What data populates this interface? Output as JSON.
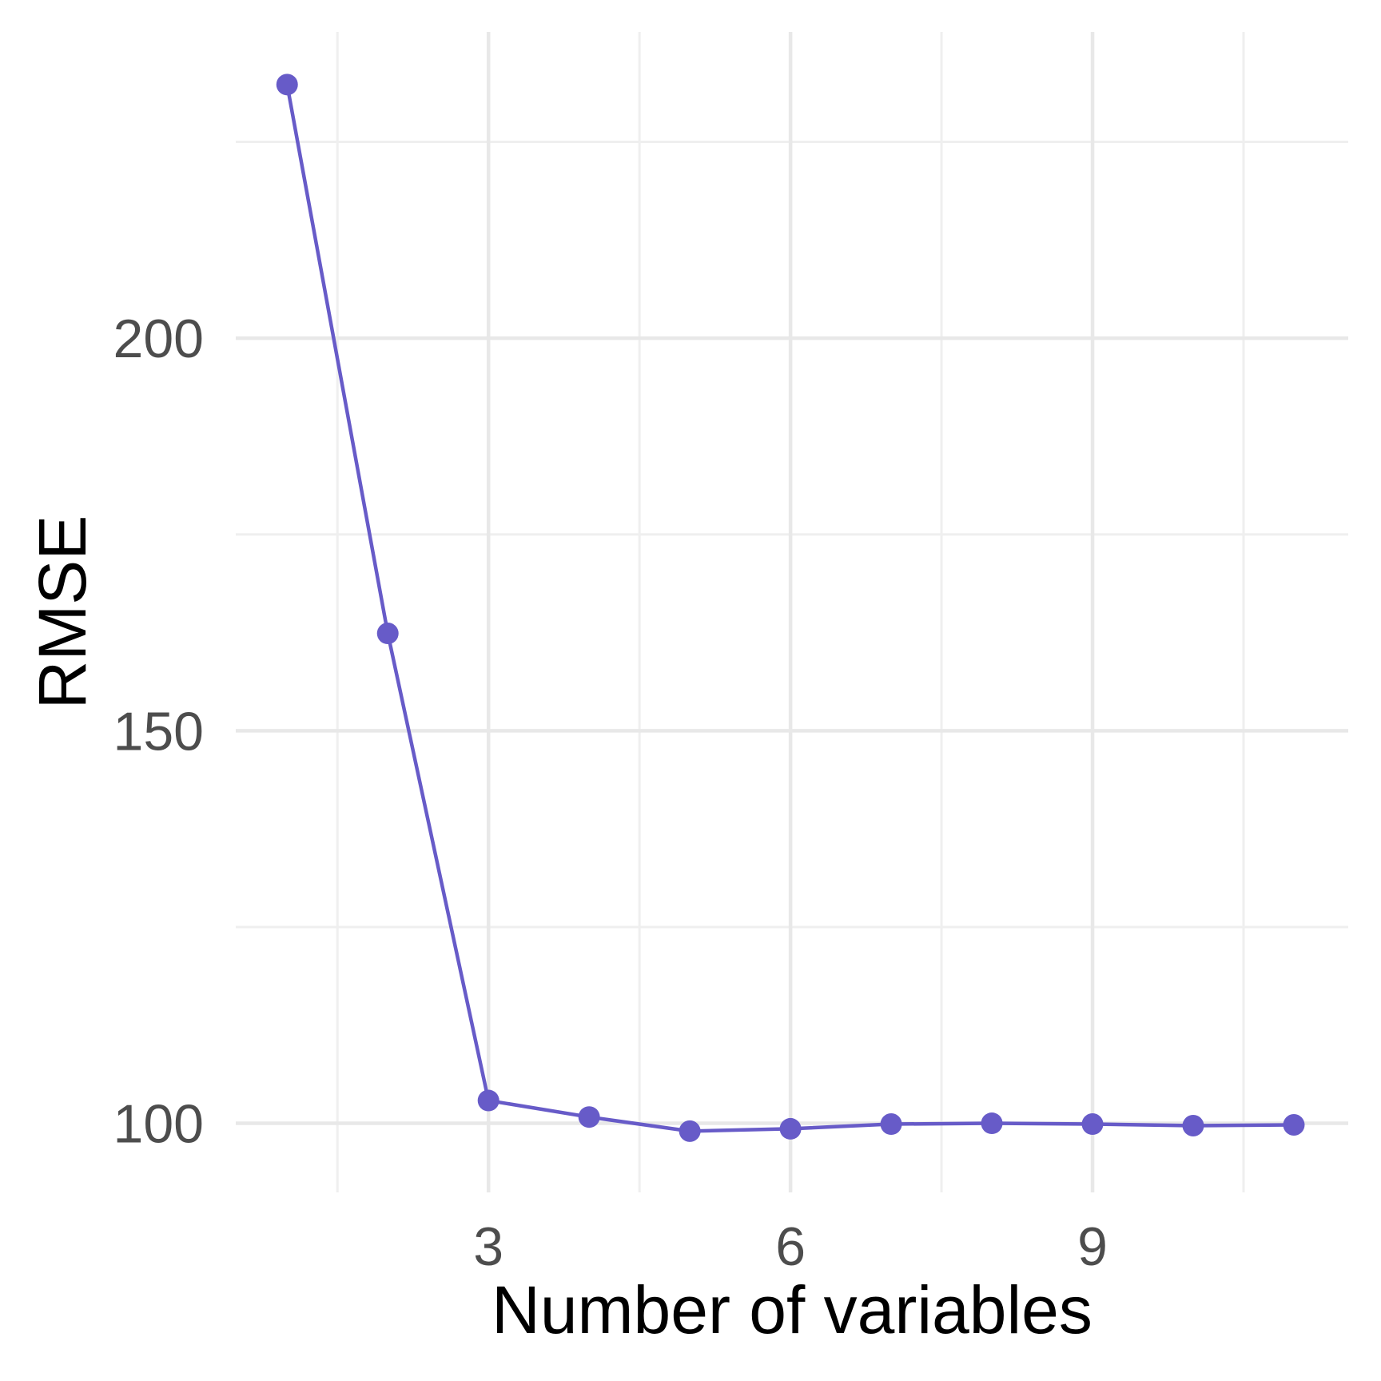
{
  "chart_data": {
    "type": "line",
    "title": "",
    "xlabel": "Number of variables",
    "ylabel": "RMSE",
    "x": [
      1,
      2,
      3,
      4,
      5,
      6,
      7,
      8,
      9,
      10,
      11
    ],
    "y": [
      232.3,
      162.4,
      102.9,
      100.8,
      99.0,
      99.3,
      99.9,
      100.0,
      99.9,
      99.7,
      99.8
    ],
    "x_ticks": [
      3,
      6,
      9
    ],
    "y_ticks": [
      100,
      150,
      200
    ],
    "x_minor_breaks": [
      1.5,
      4.5,
      7.5,
      10.5
    ],
    "y_minor_breaks": [
      125,
      175,
      225
    ],
    "xlim": [
      0.49,
      11.54
    ],
    "ylim": [
      91.2,
      239.0
    ],
    "grid": "on",
    "legend": "none",
    "colors": {
      "series": "#675bc8",
      "major_grid": "#e8e8e8",
      "minor_grid": "#efefef",
      "tick_label": "#4d4d4d",
      "axis_title": "#000000",
      "background": "#ffffff"
    }
  }
}
